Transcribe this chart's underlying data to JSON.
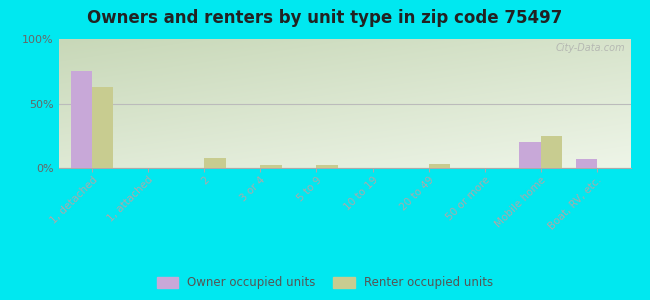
{
  "title": "Owners and renters by unit type in zip code 75497",
  "categories": [
    "1, detached",
    "1, attached",
    "2",
    "3 or 4",
    "5 to 9",
    "10 to 19",
    "20 to 49",
    "50 or more",
    "Mobile home",
    "Boat, RV, etc."
  ],
  "owner_values": [
    75,
    0,
    0,
    0,
    0,
    0,
    0,
    0,
    20,
    7
  ],
  "renter_values": [
    63,
    0,
    8,
    2,
    2,
    0,
    3,
    0,
    25,
    0
  ],
  "owner_color": "#c8a8d8",
  "renter_color": "#c8cc90",
  "bg_outer": "#00e8f0",
  "ylim": [
    0,
    100
  ],
  "yticks": [
    0,
    50,
    100
  ],
  "ytick_labels": [
    "0%",
    "50%",
    "100%"
  ],
  "bar_width": 0.38,
  "legend_owner": "Owner occupied units",
  "legend_renter": "Renter occupied units",
  "watermark": "City-Data.com",
  "grad_top_left": "#c8d8b8",
  "grad_bottom_right": "#eef5e8"
}
